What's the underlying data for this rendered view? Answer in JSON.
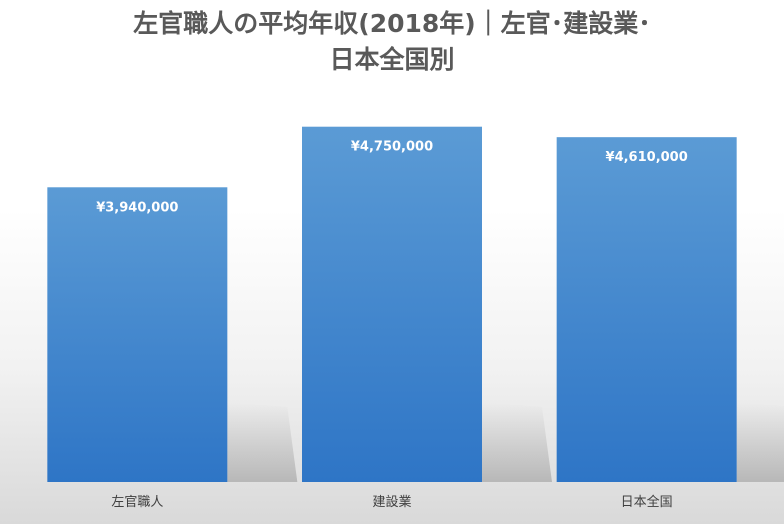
{
  "chart_data": {
    "type": "bar",
    "title_lines": [
      "左官職人の平均年収(2018年)｜左官･建設業･",
      "日本全国別"
    ],
    "categories": [
      "左官職人",
      "建設業",
      "日本全国"
    ],
    "values": [
      3940000,
      4750000,
      4610000
    ],
    "data_labels": [
      "¥3,940,000",
      "¥4,750,000",
      "¥4,610,000"
    ],
    "xlabel": "",
    "ylabel": "",
    "ylim": [
      0,
      5000000
    ],
    "grid": false,
    "legend": "none",
    "colors": {
      "bar_top": "#5b9bd5",
      "bar_bottom": "#2e75c6",
      "title": "#595959",
      "tick_label": "#404040",
      "data_label": "#ffffff"
    }
  }
}
